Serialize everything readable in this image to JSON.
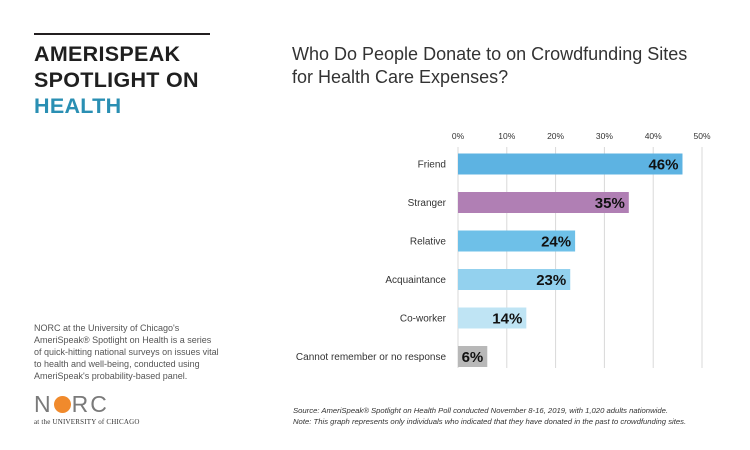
{
  "brand": {
    "line1": "AMERISPEAK",
    "line2": "SPOTLIGHT ON",
    "line3": "HEALTH"
  },
  "blurb": "NORC at the University of Chicago's AmeriSpeak® Spotlight on Health is a series of quick-hitting national surveys on issues vital to health and well-being, conducted using AmeriSpeak's probability-based panel.",
  "logo": {
    "word_left": "N",
    "word_right": "RC",
    "sub": "at the UNIVERSITY of CHICAGO"
  },
  "notes": {
    "source": "Source: AmeriSpeak® Spotlight on Health Poll conducted November 8-16, 2019, with 1,020 adults nationwide.",
    "note": "Note: This graph represents only individuals who indicated that they have donated in the past to crowdfunding sites."
  },
  "chart_data": {
    "type": "bar",
    "orientation": "horizontal",
    "title": "Who Do People Donate to on Crowdfunding Sites for Health Care Expenses?",
    "categories": [
      "Friend",
      "Stranger",
      "Relative",
      "Acquaintance",
      "Co-worker",
      "Cannot remember or no response"
    ],
    "values": [
      46,
      35,
      24,
      23,
      14,
      6
    ],
    "value_labels": [
      "46%",
      "35%",
      "24%",
      "23%",
      "14%",
      "6%"
    ],
    "xlim": [
      0,
      50
    ],
    "ticks": [
      0,
      10,
      20,
      30,
      40,
      50
    ],
    "tick_labels": [
      "0%",
      "10%",
      "20%",
      "30%",
      "40%",
      "50%"
    ],
    "grid": true,
    "colors": [
      "#5db3e2",
      "#b07fb4",
      "#6ec0e8",
      "#93d1ee",
      "#bfe4f4",
      "#b8b8b8"
    ]
  }
}
